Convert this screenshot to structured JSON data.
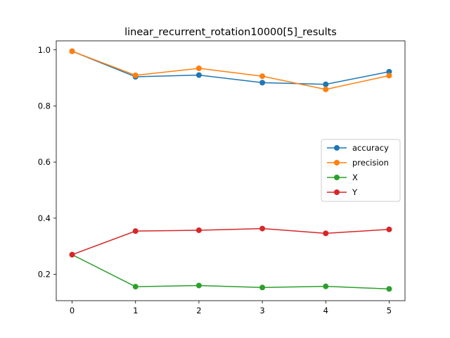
{
  "chart_data": {
    "type": "line",
    "title": "linear_recurrent_rotation10000[5]_results",
    "xlabel": "",
    "ylabel": "",
    "x": [
      0,
      1,
      2,
      3,
      4,
      5
    ],
    "xlim": [
      -0.25,
      5.25
    ],
    "ylim": [
      0.106,
      1.032
    ],
    "x_ticks": [
      "0",
      "1",
      "2",
      "3",
      "4",
      "5"
    ],
    "y_ticks": [
      "0.2",
      "0.4",
      "0.6",
      "0.8",
      "1.0"
    ],
    "grid": false,
    "legend_position": "center-right",
    "series": [
      {
        "name": "accuracy",
        "color": "#1f77b4",
        "values": [
          0.995,
          0.904,
          0.91,
          0.883,
          0.877,
          0.922
        ]
      },
      {
        "name": "precision",
        "color": "#ff7f0e",
        "values": [
          0.995,
          0.909,
          0.934,
          0.906,
          0.859,
          0.908
        ]
      },
      {
        "name": "X",
        "color": "#2ca02c",
        "values": [
          0.27,
          0.156,
          0.16,
          0.153,
          0.157,
          0.148
        ]
      },
      {
        "name": "Y",
        "color": "#d62728",
        "values": [
          0.27,
          0.354,
          0.357,
          0.363,
          0.346,
          0.36
        ]
      }
    ]
  }
}
